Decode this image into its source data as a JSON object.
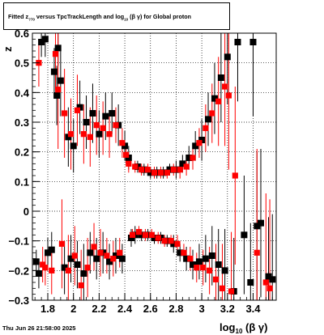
{
  "title": {
    "prefix": "Fitted  z",
    "sub1": "?70",
    "middle": "  versus TpcTrackLength and log",
    "sub2": "10",
    "suffix": "(β γ) for Global proton"
  },
  "footer": {
    "timestamp": "Thu Jun 26 21:58:00 2025"
  },
  "chart_data": {
    "type": "scatter",
    "xlabel": "log10(β γ)",
    "ylabel": "z",
    "xlim": [
      1.68,
      3.58
    ],
    "ylim": [
      -0.3,
      0.6
    ],
    "grid": true,
    "x_ticks": [
      1.8,
      2.0,
      2.2,
      2.4,
      2.6,
      2.8,
      3.0,
      3.2,
      3.4
    ],
    "x_tick_labels": [
      "1.8",
      "2",
      "2.2",
      "2.4",
      "2.6",
      "2.8",
      "3",
      "3.2",
      "3.4"
    ],
    "y_ticks": [
      -0.3,
      -0.2,
      -0.1,
      0,
      0.1,
      0.2,
      0.3,
      0.4,
      0.5,
      0.6
    ],
    "y_tick_labels": [
      "−0.3",
      "−0.2",
      "−0.1",
      "0",
      "0.1",
      "0.2",
      "0.3",
      "0.4",
      "0.5",
      "0.6"
    ],
    "series": [
      {
        "color": "#000000",
        "points": [
          [
            1.71,
            -0.17,
            0.04
          ],
          [
            1.73,
            -0.21,
            0.05
          ],
          [
            1.75,
            0.57,
            0.05
          ],
          [
            1.78,
            0.58,
            0.06
          ],
          [
            1.8,
            -0.14,
            0.05
          ],
          [
            1.83,
            -0.13,
            0.06
          ],
          [
            1.85,
            0.47,
            0.08
          ],
          [
            1.87,
            0.39,
            0.1
          ],
          [
            1.88,
            0.55,
            0.06
          ],
          [
            1.9,
            0.44,
            0.12
          ],
          [
            1.93,
            -0.19,
            0.09
          ],
          [
            1.96,
            0.25,
            0.1
          ],
          [
            1.98,
            -0.16,
            0.08
          ],
          [
            2.0,
            0.22,
            0.09
          ],
          [
            2.03,
            -0.18,
            0.08
          ],
          [
            2.05,
            0.35,
            0.09
          ],
          [
            2.08,
            -0.21,
            0.1
          ],
          [
            2.1,
            0.3,
            0.09
          ],
          [
            2.13,
            -0.14,
            0.07
          ],
          [
            2.15,
            0.33,
            0.1
          ],
          [
            2.18,
            -0.16,
            0.07
          ],
          [
            2.2,
            0.26,
            0.08
          ],
          [
            2.23,
            -0.14,
            0.07
          ],
          [
            2.25,
            0.32,
            0.08
          ],
          [
            2.28,
            -0.17,
            0.06
          ],
          [
            2.3,
            0.33,
            0.07
          ],
          [
            2.33,
            -0.15,
            0.06
          ],
          [
            2.35,
            0.29,
            0.07
          ],
          [
            2.38,
            -0.16,
            0.05
          ],
          [
            2.4,
            0.22,
            0.05
          ],
          [
            2.43,
            0.18,
            0.04
          ],
          [
            2.45,
            -0.09,
            0.03
          ],
          [
            2.48,
            -0.08,
            0.03
          ],
          [
            2.5,
            0.15,
            0.02
          ],
          [
            2.53,
            -0.08,
            0.02
          ],
          [
            2.55,
            0.14,
            0.02
          ],
          [
            2.58,
            -0.08,
            0.02
          ],
          [
            2.6,
            0.13,
            0.02
          ],
          [
            2.63,
            -0.09,
            0.02
          ],
          [
            2.65,
            0.13,
            0.02
          ],
          [
            2.68,
            -0.09,
            0.02
          ],
          [
            2.7,
            0.13,
            0.02
          ],
          [
            2.73,
            -0.1,
            0.02
          ],
          [
            2.75,
            0.14,
            0.02
          ],
          [
            2.78,
            -0.11,
            0.03
          ],
          [
            2.8,
            0.14,
            0.03
          ],
          [
            2.83,
            -0.14,
            0.03
          ],
          [
            2.85,
            0.16,
            0.03
          ],
          [
            2.88,
            -0.16,
            0.04
          ],
          [
            2.9,
            0.18,
            0.04
          ],
          [
            2.93,
            -0.18,
            0.05
          ],
          [
            2.95,
            0.22,
            0.05
          ],
          [
            2.98,
            -0.17,
            0.06
          ],
          [
            3.0,
            0.24,
            0.07
          ],
          [
            3.03,
            -0.16,
            0.08
          ],
          [
            3.05,
            0.31,
            0.09
          ],
          [
            3.08,
            -0.15,
            0.1
          ],
          [
            3.1,
            0.38,
            0.12
          ],
          [
            3.13,
            -0.18,
            0.12
          ],
          [
            3.15,
            0.45,
            0.15
          ],
          [
            3.18,
            -0.2,
            0.14
          ],
          [
            3.2,
            0.52,
            0.16
          ],
          [
            3.25,
            -0.27,
            0.18
          ],
          [
            3.28,
            0.57,
            0.2
          ],
          [
            3.33,
            -0.08,
            0.2
          ],
          [
            3.38,
            -0.24,
            0.2
          ],
          [
            3.4,
            0.57,
            0.25
          ],
          [
            3.43,
            -0.05,
            0.25
          ],
          [
            3.46,
            -0.04,
            0.25
          ],
          [
            3.52,
            -0.22,
            0.2
          ],
          [
            3.55,
            -0.23,
            0.22
          ]
        ]
      },
      {
        "color": "#ff0000",
        "points": [
          [
            1.73,
            0.5,
            0.08
          ],
          [
            1.76,
            -0.18,
            0.06
          ],
          [
            1.78,
            -0.19,
            0.06
          ],
          [
            1.83,
            -0.2,
            0.08
          ],
          [
            1.86,
            0.53,
            0.12
          ],
          [
            1.88,
            0.41,
            0.2
          ],
          [
            1.91,
            -0.11,
            0.15
          ],
          [
            1.93,
            0.33,
            0.15
          ],
          [
            1.96,
            -0.2,
            0.12
          ],
          [
            1.98,
            0.26,
            0.12
          ],
          [
            2.01,
            -0.15,
            0.1
          ],
          [
            2.03,
            0.34,
            0.12
          ],
          [
            2.06,
            -0.25,
            0.12
          ],
          [
            2.08,
            0.26,
            0.1
          ],
          [
            2.11,
            -0.19,
            0.1
          ],
          [
            2.13,
            0.25,
            0.1
          ],
          [
            2.16,
            -0.12,
            0.08
          ],
          [
            2.18,
            0.29,
            0.1
          ],
          [
            2.21,
            -0.14,
            0.08
          ],
          [
            2.23,
            0.28,
            0.09
          ],
          [
            2.26,
            -0.15,
            0.06
          ],
          [
            2.28,
            0.26,
            0.08
          ],
          [
            2.31,
            -0.16,
            0.06
          ],
          [
            2.33,
            0.29,
            0.06
          ],
          [
            2.36,
            -0.14,
            0.05
          ],
          [
            2.38,
            0.23,
            0.05
          ],
          [
            2.41,
            0.19,
            0.03
          ],
          [
            2.43,
            0.16,
            0.03
          ],
          [
            2.46,
            -0.08,
            0.02
          ],
          [
            2.48,
            0.15,
            0.02
          ],
          [
            2.51,
            -0.07,
            0.02
          ],
          [
            2.53,
            0.14,
            0.02
          ],
          [
            2.56,
            -0.08,
            0.02
          ],
          [
            2.58,
            0.14,
            0.02
          ],
          [
            2.61,
            -0.08,
            0.02
          ],
          [
            2.63,
            0.13,
            0.02
          ],
          [
            2.66,
            -0.09,
            0.02
          ],
          [
            2.68,
            0.13,
            0.02
          ],
          [
            2.71,
            -0.1,
            0.02
          ],
          [
            2.73,
            0.13,
            0.02
          ],
          [
            2.76,
            -0.1,
            0.02
          ],
          [
            2.78,
            0.14,
            0.02
          ],
          [
            2.81,
            -0.11,
            0.03
          ],
          [
            2.83,
            0.14,
            0.03
          ],
          [
            2.86,
            -0.14,
            0.03
          ],
          [
            2.88,
            0.15,
            0.03
          ],
          [
            2.91,
            -0.16,
            0.04
          ],
          [
            2.93,
            0.18,
            0.04
          ],
          [
            2.96,
            -0.19,
            0.05
          ],
          [
            2.98,
            0.23,
            0.05
          ],
          [
            3.01,
            -0.19,
            0.06
          ],
          [
            3.03,
            0.28,
            0.08
          ],
          [
            3.06,
            -0.2,
            0.08
          ],
          [
            3.08,
            0.33,
            0.1
          ],
          [
            3.11,
            -0.23,
            0.12
          ],
          [
            3.13,
            0.37,
            0.15
          ],
          [
            3.16,
            -0.26,
            0.15
          ],
          [
            3.18,
            0.42,
            0.2
          ],
          [
            3.21,
            0.39,
            0.25
          ],
          [
            3.23,
            -0.27,
            0.2
          ],
          [
            3.26,
            0.12,
            0.3
          ],
          [
            3.43,
            -0.14,
            0.35
          ],
          [
            3.5,
            -0.24,
            0.3
          ],
          [
            3.53,
            -0.26,
            0.3
          ]
        ]
      }
    ]
  }
}
